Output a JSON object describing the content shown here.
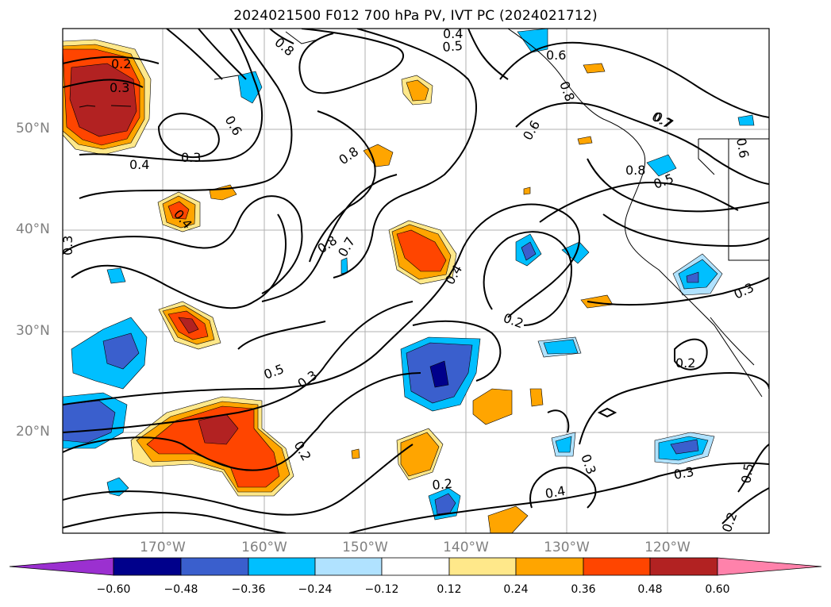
{
  "title": "2024021500 F012 700 hPa PV, IVT PC (2024021712)",
  "lat_labels": [
    "50°N",
    "40°N",
    "30°N",
    "20°N"
  ],
  "lon_labels": [
    "170°W",
    "160°W",
    "150°W",
    "140°W",
    "130°W",
    "120°W"
  ],
  "colorbar": {
    "ticks": [
      "−0.60",
      "−0.48",
      "−0.36",
      "−0.24",
      "−0.12",
      "0.12",
      "0.24",
      "0.36",
      "0.48",
      "0.60"
    ],
    "colors": [
      "#9b30d0",
      "#00008b",
      "#3a5fcd",
      "#00bfff",
      "#b0e2ff",
      "#ffffff",
      "#ffe88a",
      "#ffa500",
      "#ff4500",
      "#b22222",
      "#ff82ab"
    ]
  },
  "contour_labels": [
    "0.2",
    "0.3",
    "0.4",
    "0.3",
    "0.3",
    "0.6",
    "0.8",
    "0.4",
    "0.8",
    "0.7",
    "0.8",
    "0.7",
    "0.4",
    "0.5",
    "0.6",
    "0.2",
    "0.5",
    "0.3",
    "0.2",
    "0.2",
    "0.4",
    "0.3",
    "0.2",
    "0.3",
    "0.3",
    "0.2",
    "0.6",
    "0.7",
    "0.8",
    "0.5",
    "0.4",
    "0.5",
    "0.6",
    "0.8"
  ]
}
